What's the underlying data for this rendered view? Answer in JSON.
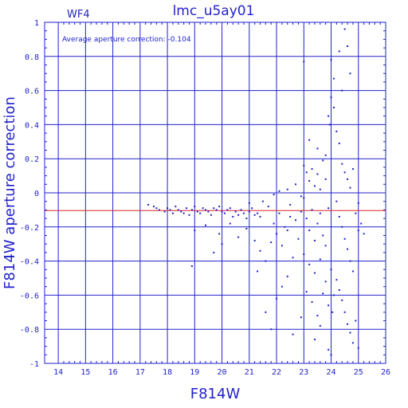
{
  "page": {
    "panel_label": "WF4",
    "title": "lmc_u5ay01",
    "annotation": "Average aperture correction: -0.104"
  },
  "chart_data": {
    "type": "scatter",
    "title": "lmc_u5ay01",
    "xlabel": "F814W",
    "ylabel": "F814W aperture correction",
    "xlim": [
      13.5,
      26
    ],
    "ylim": [
      -1,
      1
    ],
    "xticks": [
      14,
      15,
      16,
      17,
      18,
      19,
      20,
      21,
      22,
      23,
      24,
      25,
      26
    ],
    "yticks": [
      -1,
      -0.8,
      -0.6,
      -0.4,
      -0.2,
      0,
      0.2,
      0.4,
      0.6,
      0.8,
      1
    ],
    "grid": true,
    "reference_line": {
      "y": -0.104,
      "color": "#dd2222"
    },
    "series": [
      {
        "color": "#2222cc",
        "points": [
          [
            17.3,
            -0.07
          ],
          [
            17.5,
            -0.08
          ],
          [
            17.6,
            -0.09
          ],
          [
            17.7,
            -0.1
          ],
          [
            17.9,
            -0.11
          ],
          [
            18.0,
            -0.09
          ],
          [
            18.1,
            -0.1
          ],
          [
            18.2,
            -0.12
          ],
          [
            18.3,
            -0.08
          ],
          [
            18.4,
            -0.1
          ],
          [
            18.5,
            -0.11
          ],
          [
            18.6,
            -0.12
          ],
          [
            18.7,
            -0.09
          ],
          [
            18.8,
            -0.13
          ],
          [
            18.9,
            -0.1
          ],
          [
            19.0,
            -0.08
          ],
          [
            19.1,
            -0.11
          ],
          [
            19.2,
            -0.12
          ],
          [
            19.3,
            -0.09
          ],
          [
            19.4,
            -0.1
          ],
          [
            19.5,
            -0.11
          ],
          [
            19.6,
            -0.13
          ],
          [
            19.7,
            -0.09
          ],
          [
            19.8,
            -0.1
          ],
          [
            19.9,
            -0.08
          ],
          [
            20.0,
            -0.11
          ],
          [
            20.1,
            -0.12
          ],
          [
            20.2,
            -0.1
          ],
          [
            20.3,
            -0.09
          ],
          [
            20.4,
            -0.14
          ],
          [
            20.5,
            -0.11
          ],
          [
            20.6,
            -0.13
          ],
          [
            20.7,
            -0.1
          ],
          [
            20.8,
            -0.12
          ],
          [
            20.9,
            -0.15
          ],
          [
            21.0,
            -0.11
          ],
          [
            21.1,
            -0.09
          ],
          [
            21.2,
            -0.13
          ],
          [
            21.3,
            -0.12
          ],
          [
            21.4,
            -0.14
          ],
          [
            19.0,
            -0.22
          ],
          [
            19.4,
            -0.19
          ],
          [
            19.9,
            -0.24
          ],
          [
            20.3,
            -0.18
          ],
          [
            18.9,
            -0.43
          ],
          [
            19.7,
            -0.35
          ],
          [
            20.0,
            -0.3
          ],
          [
            20.6,
            -0.26
          ],
          [
            20.9,
            -0.21
          ],
          [
            21.2,
            -0.28
          ],
          [
            21.0,
            -0.06
          ],
          [
            21.5,
            -0.05
          ],
          [
            21.7,
            -0.08
          ],
          [
            21.9,
            -0.18
          ],
          [
            22.1,
            -0.12
          ],
          [
            22.3,
            -0.2
          ],
          [
            22.5,
            -0.07
          ],
          [
            22.7,
            -0.16
          ],
          [
            22.9,
            -0.11
          ],
          [
            21.3,
            -0.46
          ],
          [
            21.4,
            -0.34
          ],
          [
            21.6,
            -0.4
          ],
          [
            21.8,
            -0.29
          ],
          [
            22.0,
            -0.24
          ],
          [
            22.2,
            -0.31
          ],
          [
            22.4,
            -0.22
          ],
          [
            22.6,
            -0.38
          ],
          [
            22.8,
            -0.27
          ],
          [
            21.6,
            -0.7
          ],
          [
            21.8,
            -0.8
          ],
          [
            22.0,
            -0.62
          ],
          [
            22.2,
            -0.55
          ],
          [
            22.4,
            -0.49
          ],
          [
            22.6,
            -0.83
          ],
          [
            22.9,
            -0.73
          ],
          [
            22.1,
            0.01
          ],
          [
            22.4,
            0.02
          ],
          [
            22.7,
            0.05
          ],
          [
            22.9,
            -0.02
          ],
          [
            21.9,
            -0.01
          ],
          [
            23.0,
            0.77
          ],
          [
            23.0,
            0.16
          ],
          [
            23.1,
            0.12
          ],
          [
            23.2,
            0.07
          ],
          [
            23.3,
            0.14
          ],
          [
            23.4,
            0.04
          ],
          [
            23.5,
            0.11
          ],
          [
            23.6,
            0.02
          ],
          [
            23.7,
            0.19
          ],
          [
            23.8,
            0.08
          ],
          [
            23.1,
            -0.15
          ],
          [
            23.2,
            -0.22
          ],
          [
            23.3,
            -0.1
          ],
          [
            23.4,
            -0.28
          ],
          [
            23.5,
            -0.18
          ],
          [
            23.6,
            -0.12
          ],
          [
            23.7,
            -0.25
          ],
          [
            23.8,
            -0.31
          ],
          [
            23.9,
            -0.09
          ],
          [
            23.0,
            -0.36
          ],
          [
            23.2,
            -0.42
          ],
          [
            23.4,
            -0.47
          ],
          [
            23.6,
            -0.39
          ],
          [
            23.8,
            -0.52
          ],
          [
            23.1,
            -0.58
          ],
          [
            23.3,
            -0.64
          ],
          [
            23.5,
            -0.72
          ],
          [
            23.7,
            -0.59
          ],
          [
            23.9,
            -0.66
          ],
          [
            23.4,
            -0.86
          ],
          [
            23.6,
            -0.78
          ],
          [
            23.9,
            -0.92
          ],
          [
            23.2,
            0.31
          ],
          [
            23.5,
            0.26
          ],
          [
            23.8,
            0.22
          ],
          [
            23.95,
            0.4
          ],
          [
            23.9,
            0.45
          ],
          [
            24.0,
            0.78
          ],
          [
            24.0,
            0.56
          ],
          [
            24.1,
            0.67
          ],
          [
            24.1,
            0.5
          ],
          [
            24.2,
            0.36
          ],
          [
            24.3,
            0.29
          ],
          [
            24.4,
            0.17
          ],
          [
            24.5,
            0.12
          ],
          [
            24.6,
            0.08
          ],
          [
            24.7,
            0.03
          ],
          [
            24.8,
            0.14
          ],
          [
            24.3,
            0.83
          ],
          [
            24.4,
            0.6
          ],
          [
            24.5,
            0.96
          ],
          [
            24.6,
            0.86
          ],
          [
            24.7,
            0.7
          ],
          [
            24.2,
            -0.05
          ],
          [
            24.3,
            -0.14
          ],
          [
            24.4,
            -0.2
          ],
          [
            24.5,
            -0.27
          ],
          [
            24.6,
            -0.33
          ],
          [
            24.7,
            -0.4
          ],
          [
            24.8,
            -0.46
          ],
          [
            24.2,
            -0.51
          ],
          [
            24.3,
            -0.57
          ],
          [
            24.4,
            -0.63
          ],
          [
            24.5,
            -0.7
          ],
          [
            24.6,
            -0.77
          ],
          [
            24.7,
            -0.82
          ],
          [
            24.8,
            -0.88
          ],
          [
            25.0,
            -0.91
          ],
          [
            24.9,
            -0.75
          ],
          [
            25.0,
            -0.22
          ],
          [
            25.1,
            -0.18
          ],
          [
            25.2,
            -0.24
          ],
          [
            24.9,
            -0.12
          ],
          [
            25.0,
            -0.06
          ],
          [
            24.1,
            -0.6
          ],
          [
            24.0,
            -0.45
          ],
          [
            24.05,
            -0.7
          ],
          [
            24.0,
            -0.95
          ],
          [
            23.0,
            -0.03
          ],
          [
            22.5,
            -0.14
          ]
        ]
      }
    ]
  },
  "style": {
    "axis_color": "#2222cc",
    "ref_color": "#dd2222"
  }
}
